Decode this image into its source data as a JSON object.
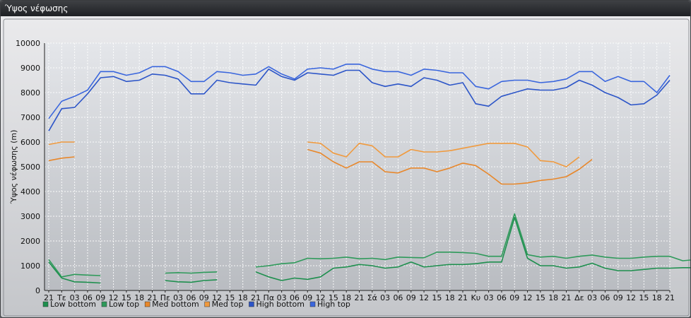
{
  "window": {
    "title": "Ύψος νέφωσης"
  },
  "chart_data": {
    "type": "line",
    "ylabel": "Ύψος νέφωσης (m)",
    "xlabel": "",
    "ylim": [
      0,
      10000
    ],
    "yticks": [
      0,
      1000,
      2000,
      3000,
      4000,
      5000,
      6000,
      7000,
      8000,
      9000,
      10000
    ],
    "grid": true,
    "legend_position": "bottom-left",
    "x_ticks": [
      "21",
      "Τε",
      "03",
      "06",
      "09",
      "12",
      "15",
      "18",
      "21",
      "Πε",
      "03",
      "06",
      "09",
      "12",
      "15",
      "18",
      "21",
      "Πα",
      "03",
      "06",
      "09",
      "12",
      "15",
      "18",
      "21",
      "Σά",
      "03",
      "06",
      "09",
      "12",
      "15",
      "18",
      "21",
      "Κυ",
      "03",
      "06",
      "09",
      "12",
      "15",
      "18",
      "21",
      "Δε",
      "03",
      "06",
      "09",
      "12",
      "15",
      "18",
      "21"
    ],
    "series": [
      {
        "name": "Low bottom",
        "color": "#1e8f4e",
        "values": [
          1150,
          500,
          350,
          330,
          300,
          null,
          null,
          null,
          null,
          400,
          350,
          330,
          400,
          430,
          null,
          null,
          750,
          550,
          400,
          500,
          450,
          550,
          900,
          950,
          1050,
          1000,
          900,
          950,
          1150,
          950,
          1000,
          1050,
          1050,
          1080,
          1150,
          1150,
          2950,
          1300,
          1000,
          1000,
          900,
          950,
          1100,
          900,
          800,
          800,
          850,
          900,
          900,
          920,
          920
        ]
      },
      {
        "name": "Low top",
        "color": "#2e9a5a",
        "values": [
          1250,
          550,
          650,
          620,
          600,
          null,
          null,
          null,
          null,
          700,
          720,
          700,
          730,
          750,
          null,
          null,
          950,
          1000,
          1080,
          1120,
          1300,
          1280,
          1300,
          1350,
          1280,
          1300,
          1250,
          1350,
          1330,
          1320,
          1550,
          1550,
          1530,
          1500,
          1380,
          1380,
          3100,
          1450,
          1350,
          1380,
          1300,
          1380,
          1430,
          1350,
          1300,
          1300,
          1350,
          1380,
          1380,
          1200,
          1250
        ]
      },
      {
        "name": "Med bottom",
        "color": "#e8872a",
        "values": [
          5250,
          5350,
          5400,
          null,
          null,
          null,
          null,
          null,
          null,
          null,
          null,
          null,
          null,
          null,
          null,
          null,
          null,
          null,
          null,
          null,
          5700,
          5550,
          5200,
          4950,
          5200,
          5200,
          4800,
          4750,
          4950,
          4950,
          4800,
          4950,
          5150,
          5050,
          4700,
          4300,
          4300,
          4350,
          4450,
          4500,
          4600,
          4900,
          5300
        ]
      },
      {
        "name": "Med top",
        "color": "#f09a3e",
        "values": [
          5900,
          6000,
          6000,
          null,
          null,
          null,
          null,
          null,
          null,
          null,
          null,
          null,
          null,
          null,
          null,
          null,
          null,
          null,
          null,
          null,
          6000,
          5950,
          5550,
          5400,
          5950,
          5850,
          5400,
          5400,
          5700,
          5600,
          5600,
          5650,
          5750,
          5850,
          5950,
          5950,
          5950,
          5800,
          5250,
          5200,
          5000,
          5400
        ]
      },
      {
        "name": "High bottom",
        "color": "#2c55c8",
        "values": [
          6450,
          7350,
          7400,
          7950,
          8600,
          8650,
          8450,
          8500,
          8750,
          8700,
          8550,
          7950,
          7950,
          8500,
          8400,
          8350,
          8300,
          8950,
          8650,
          8500,
          8800,
          8750,
          8700,
          8900,
          8900,
          8400,
          8250,
          8350,
          8250,
          8600,
          8500,
          8300,
          8400,
          7550,
          7450,
          7850,
          8000,
          8150,
          8100,
          8100,
          8200,
          8500,
          8300,
          8000,
          7800,
          7500,
          7550,
          7900,
          8500
        ]
      },
      {
        "name": "High top",
        "color": "#3a66dd",
        "values": [
          6950,
          7650,
          7850,
          8100,
          8850,
          8850,
          8700,
          8800,
          9050,
          9050,
          8850,
          8450,
          8450,
          8850,
          8800,
          8700,
          8750,
          9050,
          8750,
          8550,
          8950,
          9000,
          8950,
          9150,
          9150,
          8950,
          8850,
          8850,
          8700,
          8950,
          8900,
          8800,
          8800,
          8250,
          8150,
          8450,
          8500,
          8500,
          8400,
          8450,
          8550,
          8850,
          8850,
          8450,
          8650,
          8450,
          8450,
          8000,
          8700
        ]
      }
    ]
  }
}
